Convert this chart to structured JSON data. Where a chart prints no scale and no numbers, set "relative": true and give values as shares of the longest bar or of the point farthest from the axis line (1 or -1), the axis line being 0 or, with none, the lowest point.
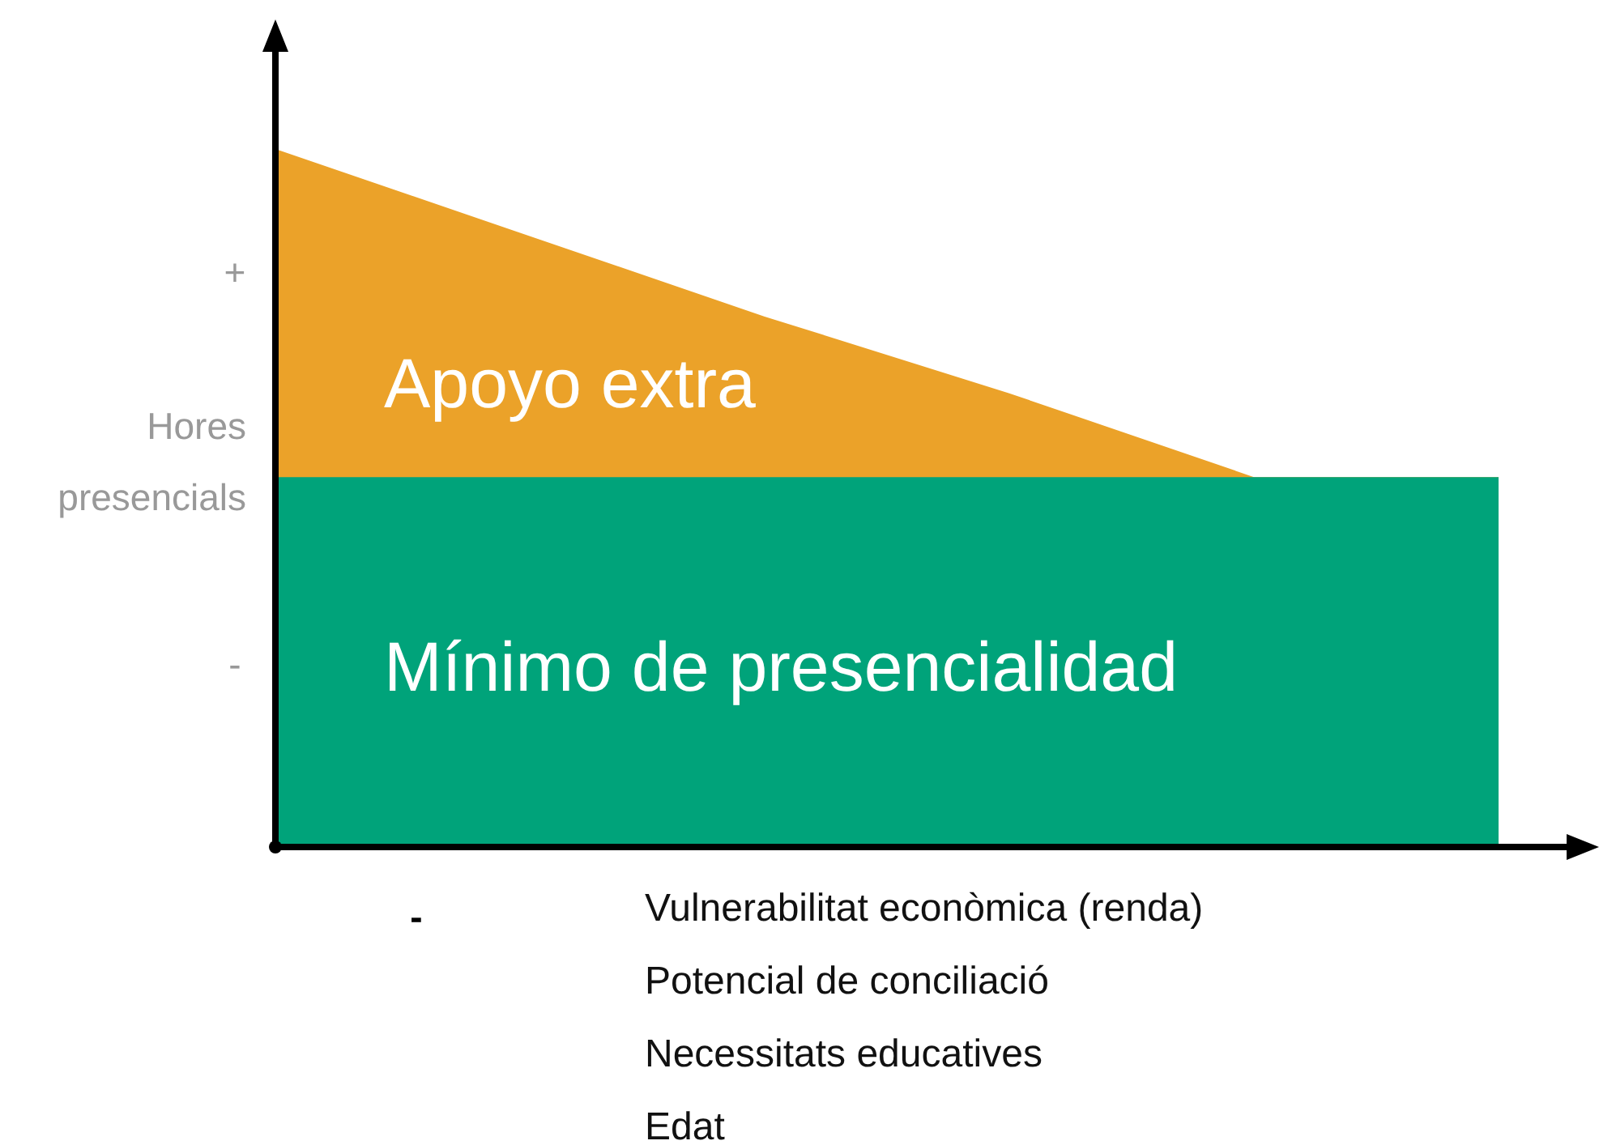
{
  "chart_data": {
    "type": "area",
    "relative": true,
    "ylabel": "Hores presencials",
    "categories": [
      null,
      null,
      null,
      null,
      null,
      null
    ],
    "series": [
      {
        "name": "Apoyo extra",
        "color": "#eba229",
        "values": [
          1,
          0.88,
          0.76,
          0.65,
          0.53,
          0.53
        ]
      },
      {
        "name": "Mínimo de presencialidad",
        "color": "#00a37a",
        "values": [
          0.53,
          0.53,
          0.53,
          0.53,
          0.53,
          0.53
        ]
      }
    ],
    "annotations": [
      "+",
      "-",
      "-",
      "Vulnerabilitat econòmica (renda)",
      "Potencial de conciliació",
      "Necessitats educatives",
      "Edat"
    ]
  }
}
